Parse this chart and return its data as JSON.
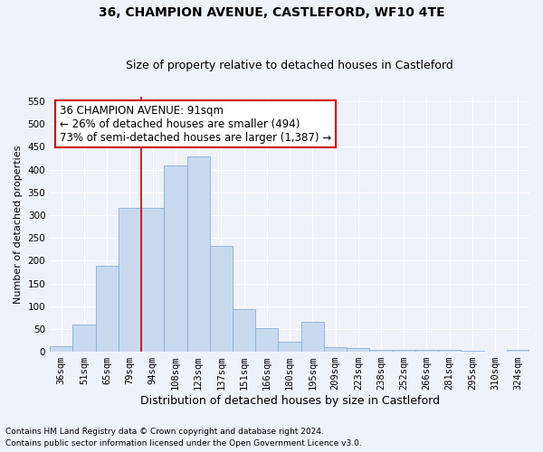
{
  "title": "36, CHAMPION AVENUE, CASTLEFORD, WF10 4TE",
  "subtitle": "Size of property relative to detached houses in Castleford",
  "xlabel": "Distribution of detached houses by size in Castleford",
  "ylabel": "Number of detached properties",
  "categories": [
    "36sqm",
    "51sqm",
    "65sqm",
    "79sqm",
    "94sqm",
    "108sqm",
    "123sqm",
    "137sqm",
    "151sqm",
    "166sqm",
    "180sqm",
    "195sqm",
    "209sqm",
    "223sqm",
    "238sqm",
    "252sqm",
    "266sqm",
    "281sqm",
    "295sqm",
    "310sqm",
    "324sqm"
  ],
  "values": [
    12,
    60,
    188,
    315,
    315,
    410,
    430,
    232,
    93,
    52,
    22,
    65,
    10,
    8,
    5,
    5,
    5,
    5,
    3,
    1,
    4
  ],
  "bar_color": "#c9d9f0",
  "bar_edge_color": "#8aafd4",
  "annotation_text": "36 CHAMPION AVENUE: 91sqm\n← 26% of detached houses are smaller (494)\n73% of semi-detached houses are larger (1,387) →",
  "annotation_box_color": "#ffffff",
  "annotation_box_edge": "#cc0000",
  "annotation_text_size": 8.5,
  "property_line_color": "#cc0000",
  "ylim": [
    0,
    560
  ],
  "yticks": [
    0,
    50,
    100,
    150,
    200,
    250,
    300,
    350,
    400,
    450,
    500,
    550
  ],
  "title_fontsize": 10,
  "subtitle_fontsize": 9,
  "xlabel_fontsize": 9,
  "ylabel_fontsize": 8,
  "tick_fontsize": 7.5,
  "footer_line1": "Contains HM Land Registry data © Crown copyright and database right 2024.",
  "footer_line2": "Contains public sector information licensed under the Open Government Licence v3.0.",
  "bg_color": "#eef2f9",
  "plot_bg_color": "#eef2f9",
  "grid_color": "#ffffff"
}
